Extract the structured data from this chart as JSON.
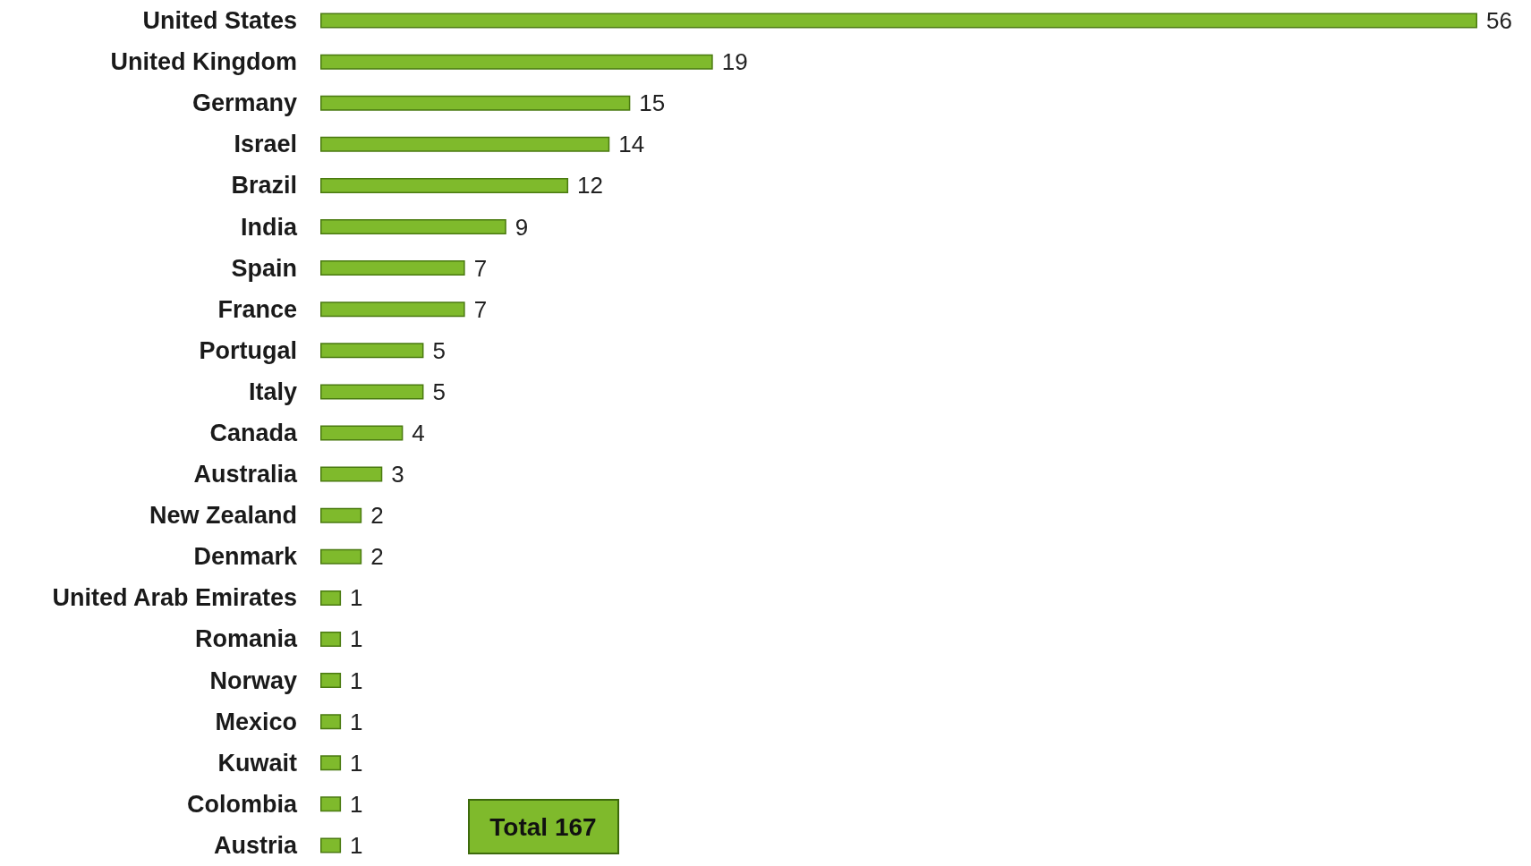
{
  "chart_data": {
    "type": "bar",
    "orientation": "horizontal",
    "categories": [
      "United States",
      "United Kingdom",
      "Germany",
      "Israel",
      "Brazil",
      "India",
      "Spain",
      "France",
      "Portugal",
      "Italy",
      "Canada",
      "Australia",
      "New Zealand",
      "Denmark",
      "United Arab Emirates",
      "Romania",
      "Norway",
      "Mexico",
      "Kuwait",
      "Colombia",
      "Austria"
    ],
    "values": [
      56,
      19,
      15,
      14,
      12,
      9,
      7,
      7,
      5,
      5,
      4,
      3,
      2,
      2,
      1,
      1,
      1,
      1,
      1,
      1,
      1
    ],
    "color": "#7fba2c",
    "data_labels": true,
    "annotations": [
      "Total 167"
    ]
  }
}
